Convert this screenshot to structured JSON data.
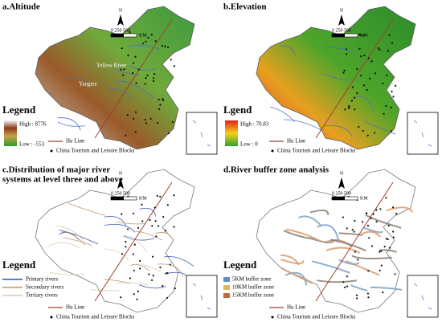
{
  "panels": [
    {
      "title": [
        "a.Altitude"
      ],
      "legend_title": "Legend",
      "ramp": [
        "High : 8776",
        "Low : -553"
      ],
      "hu_line": "Hu Line",
      "blocks": "China Tourism and Leisure Blocks",
      "north": "N",
      "scale": "0  250 500",
      "scale_unit": "KM",
      "map_labels": [
        "Yellow River",
        "Yangtze"
      ]
    },
    {
      "title": [
        "b.Elevation"
      ],
      "legend_title": "Lgend",
      "ramp": [
        "High : 70.83",
        "Low : 0"
      ],
      "hu_line": "Hu Line",
      "blocks": "China Tourism and Leisure Blocks",
      "north": "N",
      "scale": "0  250 500",
      "scale_unit": "KM"
    },
    {
      "title": [
        "c.Distribution of major river",
        "systems at level three and above"
      ],
      "legend_title": "Legend",
      "legend_items": [
        "Primary rivers",
        "Secondary rivers",
        "Tertiary rivers"
      ],
      "hu_line": "Hu Line",
      "blocks": "China Tourism and Leisure Blocks",
      "north": "N",
      "scale": "0  250 500",
      "scale_unit": "KM"
    },
    {
      "title": [
        "d.River buffer zone analysis"
      ],
      "legend_title": "Legend",
      "legend_items": [
        "5KM buffer zone",
        "10KM buffer zone",
        "15KM buffer zone"
      ],
      "hu_line": "Hu Line",
      "blocks": "China Tourism and Leisure Blocks",
      "north": "N",
      "scale": "0  250 500",
      "scale_unit": "KM"
    }
  ]
}
